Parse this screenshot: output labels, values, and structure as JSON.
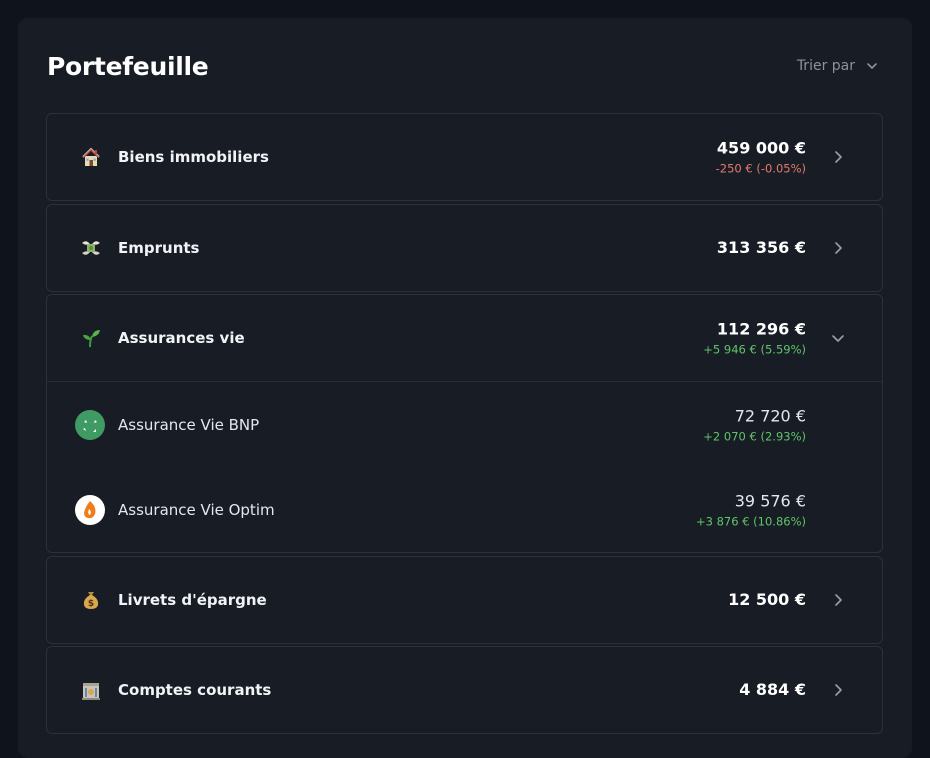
{
  "header": {
    "title": "Portefeuille",
    "sort_label": "Trier par"
  },
  "categories": [
    {
      "icon": "house-icon",
      "label": "Biens immobiliers",
      "amount": "459 000 €",
      "delta": "-250 € (-0.05%)",
      "delta_color": "#e57a6c",
      "expanded": false
    },
    {
      "icon": "money-wings-icon",
      "label": "Emprunts",
      "amount": "313 356 €",
      "delta": null,
      "expanded": false
    },
    {
      "icon": "seedling-icon",
      "label": "Assurances vie",
      "amount": "112 296 €",
      "delta": "+5 946 € (5.59%)",
      "delta_color": "#5fc56a",
      "expanded": true,
      "children": [
        {
          "icon": "bnp-logo-icon",
          "label": "Assurance Vie BNP",
          "amount": "72 720 €",
          "delta": "+2 070 € (2.93%)"
        },
        {
          "icon": "optim-logo-icon",
          "label": "Assurance Vie Optim",
          "amount": "39 576 €",
          "delta": "+3 876 € (10.86%)"
        }
      ]
    },
    {
      "icon": "money-bag-icon",
      "label": "Livrets d'épargne",
      "amount": "12 500 €",
      "delta": null,
      "expanded": false
    },
    {
      "icon": "bank-icon",
      "label": "Comptes courants",
      "amount": "4 884 €",
      "delta": null,
      "expanded": false
    }
  ],
  "colors": {
    "background": "#0f131b",
    "panel": "#181c25",
    "border": "#2b303b",
    "negative": "#e57a6c",
    "positive": "#5fc56a",
    "bnp_green": "#3f9a63",
    "optim_orange": "#ef7d1a"
  }
}
